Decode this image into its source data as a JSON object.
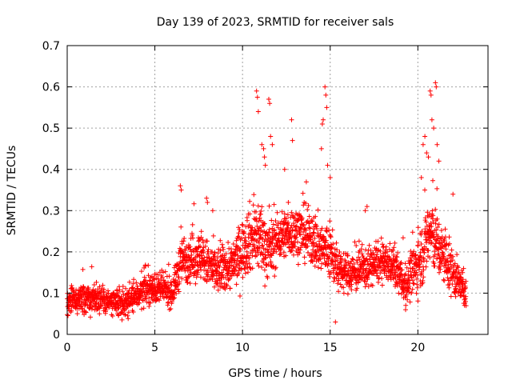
{
  "chart_data": {
    "type": "scatter",
    "title": "Day 139 of 2023, SRMTID for receiver sals",
    "xlabel": "GPS time / hours",
    "ylabel": "SRMTID / TECUs",
    "xlim": [
      0,
      24
    ],
    "ylim": [
      0,
      0.7
    ],
    "x_ticks": [
      0,
      5,
      10,
      15,
      20
    ],
    "x_tick_labels": [
      "0",
      "5",
      "10",
      "15",
      "20"
    ],
    "y_ticks": [
      0,
      0.1,
      0.2,
      0.3,
      0.4,
      0.5,
      0.6,
      0.7
    ],
    "y_tick_labels": [
      "0",
      "0.1",
      "0.2",
      "0.3",
      "0.4",
      "0.5",
      "0.6",
      "0.7"
    ],
    "grid": true,
    "marker": "plus",
    "series": [
      {
        "name": "SRMTID",
        "color": "#ff0000",
        "envelope": {
          "hours": [
            0.0,
            1.0,
            2.0,
            2.7,
            3.5,
            4.5,
            5.5,
            6.0,
            6.5,
            7.5,
            8.5,
            9.5,
            10.3,
            11.0,
            11.5,
            12.2,
            13.0,
            13.8,
            14.5,
            15.0,
            15.5,
            16.5,
            17.5,
            18.5,
            19.3,
            20.0,
            20.7,
            21.3,
            22.0,
            22.7
          ],
          "center": [
            0.08,
            0.085,
            0.09,
            0.07,
            0.08,
            0.11,
            0.11,
            0.1,
            0.18,
            0.19,
            0.15,
            0.17,
            0.23,
            0.24,
            0.2,
            0.24,
            0.25,
            0.24,
            0.21,
            0.2,
            0.15,
            0.15,
            0.17,
            0.17,
            0.12,
            0.17,
            0.25,
            0.2,
            0.15,
            0.1
          ],
          "spread": [
            0.03,
            0.03,
            0.03,
            0.03,
            0.03,
            0.03,
            0.03,
            0.03,
            0.05,
            0.05,
            0.05,
            0.05,
            0.07,
            0.08,
            0.06,
            0.05,
            0.05,
            0.06,
            0.06,
            0.06,
            0.04,
            0.04,
            0.04,
            0.04,
            0.04,
            0.06,
            0.08,
            0.06,
            0.05,
            0.03
          ]
        },
        "start_hour": 0.0,
        "end_hour": 22.75,
        "n_points": 2600,
        "extreme_points": [
          {
            "x": 10.8,
            "y": 0.59
          },
          {
            "x": 10.85,
            "y": 0.575
          },
          {
            "x": 10.9,
            "y": 0.54
          },
          {
            "x": 11.1,
            "y": 0.46
          },
          {
            "x": 11.2,
            "y": 0.45
          },
          {
            "x": 11.25,
            "y": 0.43
          },
          {
            "x": 11.3,
            "y": 0.41
          },
          {
            "x": 11.5,
            "y": 0.57
          },
          {
            "x": 11.55,
            "y": 0.56
          },
          {
            "x": 11.6,
            "y": 0.48
          },
          {
            "x": 11.7,
            "y": 0.46
          },
          {
            "x": 12.4,
            "y": 0.4
          },
          {
            "x": 12.8,
            "y": 0.52
          },
          {
            "x": 12.85,
            "y": 0.47
          },
          {
            "x": 14.5,
            "y": 0.45
          },
          {
            "x": 14.55,
            "y": 0.51
          },
          {
            "x": 14.6,
            "y": 0.52
          },
          {
            "x": 14.7,
            "y": 0.6
          },
          {
            "x": 14.75,
            "y": 0.58
          },
          {
            "x": 14.8,
            "y": 0.55
          },
          {
            "x": 14.85,
            "y": 0.41
          },
          {
            "x": 15.0,
            "y": 0.38
          },
          {
            "x": 15.3,
            "y": 0.03
          },
          {
            "x": 20.2,
            "y": 0.38
          },
          {
            "x": 20.3,
            "y": 0.46
          },
          {
            "x": 20.4,
            "y": 0.48
          },
          {
            "x": 20.5,
            "y": 0.44
          },
          {
            "x": 20.6,
            "y": 0.43
          },
          {
            "x": 20.7,
            "y": 0.59
          },
          {
            "x": 20.75,
            "y": 0.58
          },
          {
            "x": 20.8,
            "y": 0.52
          },
          {
            "x": 20.9,
            "y": 0.5
          },
          {
            "x": 21.0,
            "y": 0.61
          },
          {
            "x": 21.05,
            "y": 0.6
          },
          {
            "x": 21.1,
            "y": 0.46
          },
          {
            "x": 21.2,
            "y": 0.42
          },
          {
            "x": 6.45,
            "y": 0.36
          },
          {
            "x": 6.5,
            "y": 0.35
          },
          {
            "x": 7.95,
            "y": 0.33
          },
          {
            "x": 8.0,
            "y": 0.32
          },
          {
            "x": 8.3,
            "y": 0.3
          },
          {
            "x": 17.0,
            "y": 0.3
          },
          {
            "x": 17.1,
            "y": 0.31
          },
          {
            "x": 19.3,
            "y": 0.06
          },
          {
            "x": 22.0,
            "y": 0.34
          }
        ]
      }
    ]
  }
}
